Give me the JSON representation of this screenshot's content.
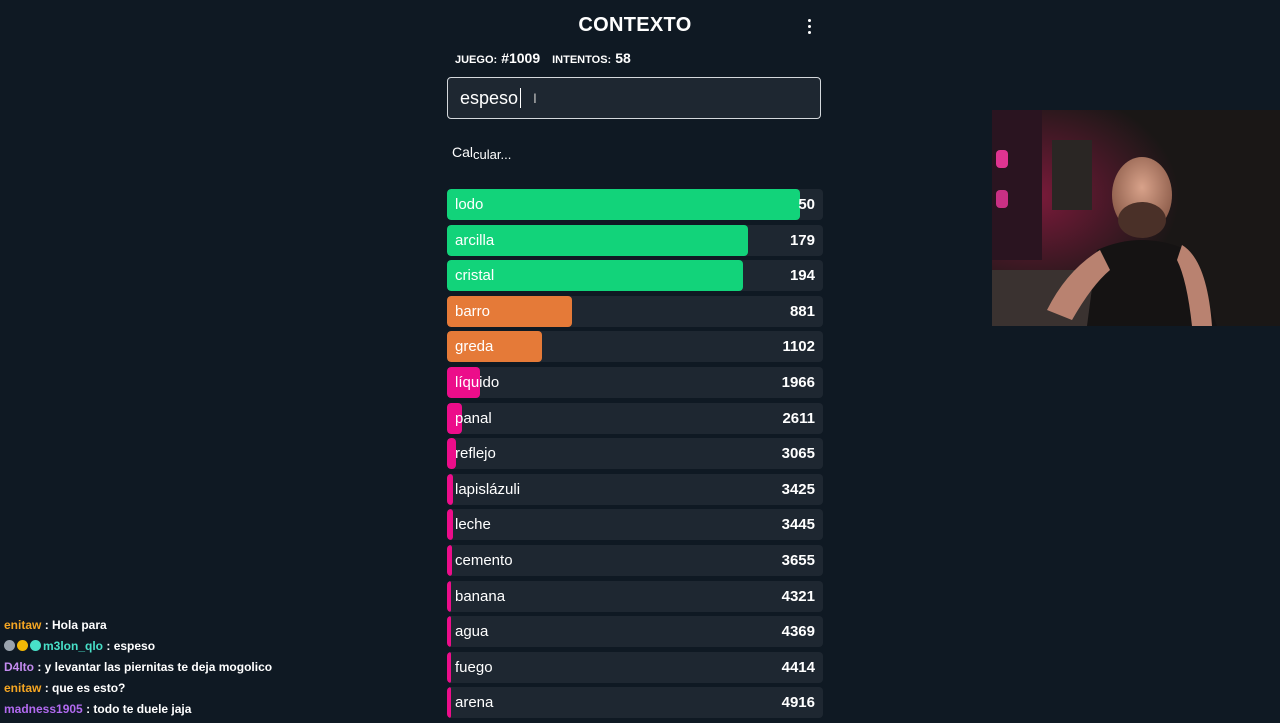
{
  "header": {
    "title": "CONTEXTO",
    "game_label": "JUEGO:",
    "game_value": "#1009",
    "attempts_label": "INTENTOS:",
    "attempts_value": "58"
  },
  "guess_input": {
    "value": "espeso"
  },
  "status": {
    "part1": "Cal",
    "part2": "cular..."
  },
  "guesses": [
    {
      "word": "lodo",
      "rank": "50",
      "fill": 0.94,
      "color": "#12d37a"
    },
    {
      "word": "arcilla",
      "rank": "179",
      "fill": 0.8,
      "color": "#12d37a"
    },
    {
      "word": "cristal",
      "rank": "194",
      "fill": 0.787,
      "color": "#12d37a"
    },
    {
      "word": "barro",
      "rank": "881",
      "fill": 0.332,
      "color": "#e57a38"
    },
    {
      "word": "greda",
      "rank": "1102",
      "fill": 0.253,
      "color": "#e57a38"
    },
    {
      "word": "líquido",
      "rank": "1966",
      "fill": 0.087,
      "color": "#ec0d8a"
    },
    {
      "word": "panal",
      "rank": "2611",
      "fill": 0.04,
      "color": "#ec0d8a"
    },
    {
      "word": "reflejo",
      "rank": "3065",
      "fill": 0.024,
      "color": "#ec0d8a"
    },
    {
      "word": "lapislázuli",
      "rank": "3425",
      "fill": 0.016,
      "color": "#ec0d8a"
    },
    {
      "word": "leche",
      "rank": "3445",
      "fill": 0.016,
      "color": "#ec0d8a"
    },
    {
      "word": "cemento",
      "rank": "3655",
      "fill": 0.013,
      "color": "#ec0d8a"
    },
    {
      "word": "banana",
      "rank": "4321",
      "fill": 0.011,
      "color": "#ec0d8a"
    },
    {
      "word": "agua",
      "rank": "4369",
      "fill": 0.011,
      "color": "#ec0d8a"
    },
    {
      "word": "fuego",
      "rank": "4414",
      "fill": 0.011,
      "color": "#ec0d8a"
    },
    {
      "word": "arena",
      "rank": "4916",
      "fill": 0.011,
      "color": "#ec0d8a"
    }
  ],
  "chat": [
    {
      "user": "enitaw",
      "color": "#f5a623",
      "msg": ": Hola para",
      "badges": []
    },
    {
      "user": "m3lon_qlo",
      "color": "#48e0c8",
      "msg": ": espeso",
      "badges": [
        "#9aa3ad",
        "#f2b705",
        "#48e0c8"
      ]
    },
    {
      "user": "D4lto",
      "color": "#c48cf0",
      "msg": ": y levantar las piernitas te deja mogolico",
      "badges": []
    },
    {
      "user": "enitaw",
      "color": "#f5a623",
      "msg": ": que es esto?",
      "badges": []
    },
    {
      "user": "madness1905",
      "color": "#b26af0",
      "msg": ": todo te duele jaja",
      "badges": []
    }
  ]
}
